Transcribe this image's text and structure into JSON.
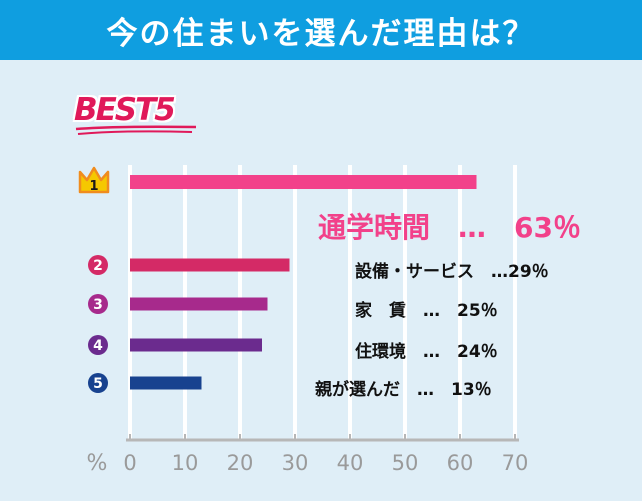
{
  "header": {
    "title": "今の住まいを選んだ理由は？"
  },
  "badge": {
    "text": "BEST5"
  },
  "chart_data": {
    "type": "bar",
    "orientation": "horizontal",
    "unit_label": "%",
    "xlim": [
      0,
      70
    ],
    "xticks": [
      0,
      10,
      20,
      30,
      40,
      50,
      60,
      70
    ],
    "grid": true,
    "bars": [
      {
        "rank": "1",
        "value": 63,
        "color": "#f2418a",
        "label": "通学時間　…　63％"
      },
      {
        "rank": "2",
        "value": 29,
        "color": "#d42a66",
        "label": "設備・サービス　…29％"
      },
      {
        "rank": "3",
        "value": 25,
        "color": "#a72a8c",
        "label": "家　賃　…　25％"
      },
      {
        "rank": "4",
        "value": 24,
        "color": "#6b2b8e",
        "label": "住環境　…　24％"
      },
      {
        "rank": "5",
        "value": 13,
        "color": "#18428f",
        "label": "親が選んだ　…　13％"
      }
    ]
  }
}
